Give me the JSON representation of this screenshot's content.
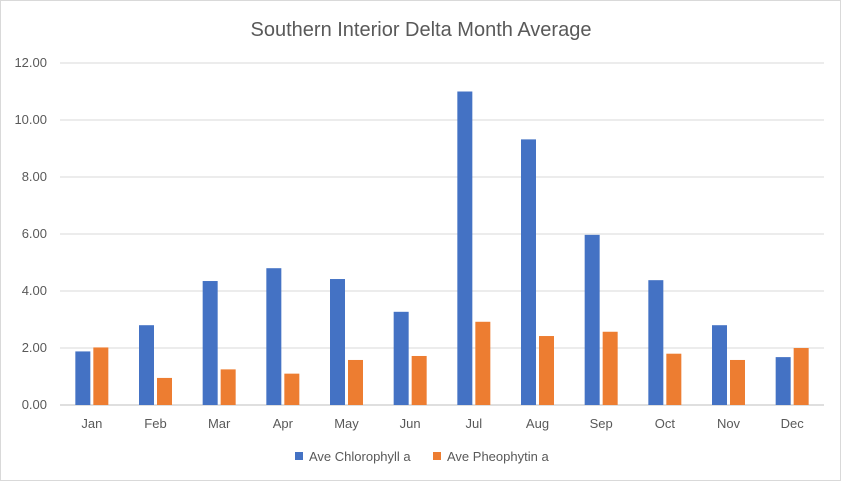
{
  "chart_data": {
    "type": "bar",
    "title": "Southern Interior Delta Month Average",
    "xlabel": "",
    "ylabel": "",
    "categories": [
      "Jan",
      "Feb",
      "Mar",
      "Apr",
      "May",
      "Jun",
      "Jul",
      "Aug",
      "Sep",
      "Oct",
      "Nov",
      "Dec"
    ],
    "series": [
      {
        "name": "Ave Chlorophyll a",
        "color": "#4472c4",
        "values": [
          1.88,
          2.8,
          4.35,
          4.8,
          4.42,
          3.27,
          11.0,
          9.32,
          5.97,
          4.38,
          2.8,
          1.68
        ]
      },
      {
        "name": "Ave Pheophytin a",
        "color": "#ed7d31",
        "values": [
          2.02,
          0.95,
          1.25,
          1.1,
          1.58,
          1.72,
          2.92,
          2.42,
          2.57,
          1.8,
          1.58,
          2.0
        ]
      }
    ],
    "ylim": [
      0,
      12
    ],
    "yticks": [
      "0.00",
      "2.00",
      "4.00",
      "6.00",
      "8.00",
      "10.00",
      "12.00"
    ],
    "grid": true,
    "legend_position": "bottom"
  }
}
